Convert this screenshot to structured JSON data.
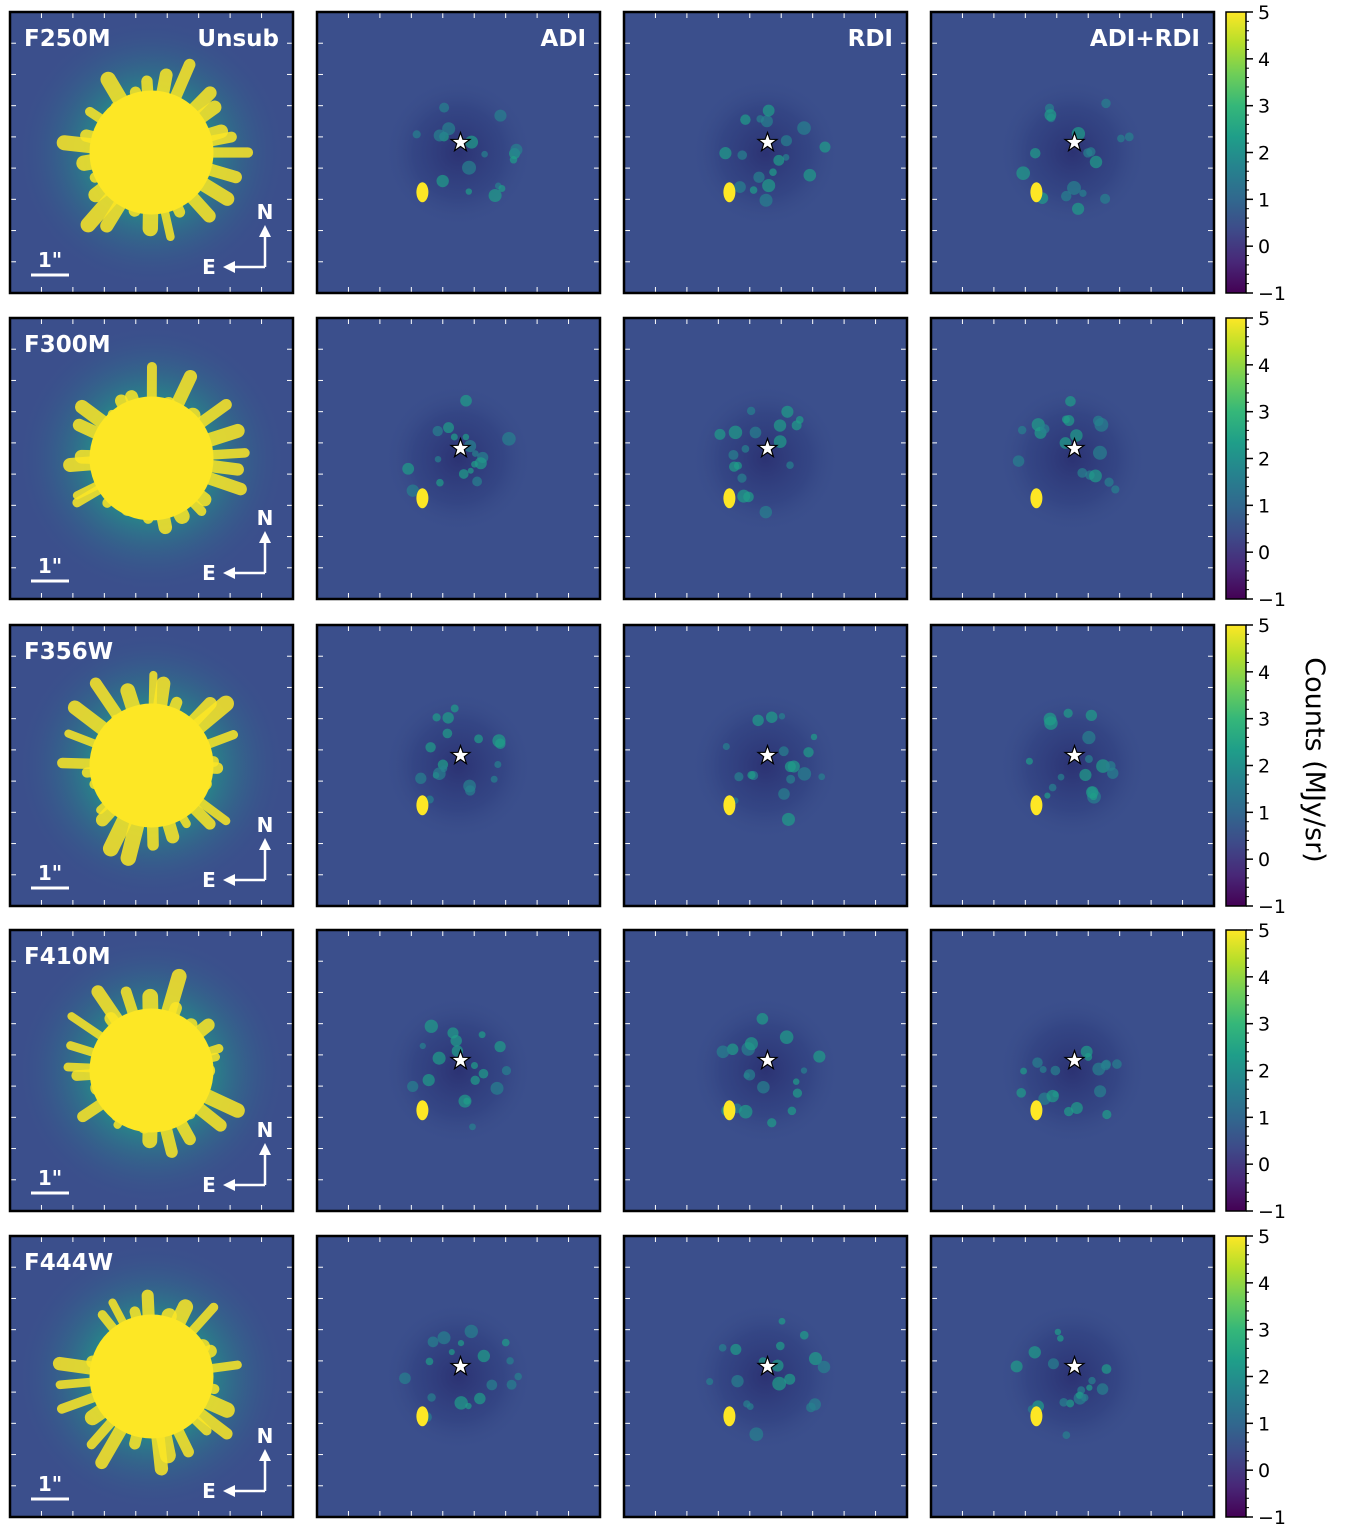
{
  "chart_data": {
    "type": "heatmap",
    "rows": [
      {
        "filter": "F250M"
      },
      {
        "filter": "F300M"
      },
      {
        "filter": "F356W"
      },
      {
        "filter": "F410M"
      },
      {
        "filter": "F444W"
      }
    ],
    "columns": [
      {
        "label": "Unsub"
      },
      {
        "label": "ADI"
      },
      {
        "label": "RDI"
      },
      {
        "label": "ADI+RDI"
      }
    ],
    "companion_offsets_arcsec": {
      "dx": -0.95,
      "dy": -1.9
    },
    "colorbar": {
      "label": "Counts (MJy/sr)",
      "range": [
        -1,
        5
      ],
      "ticks": [
        "5",
        "4",
        "3",
        "2",
        "1",
        "0",
        "−1"
      ],
      "tick_values": [
        5,
        4,
        3,
        2,
        1,
        0,
        -1
      ],
      "colormap": "viridis",
      "colors": [
        "#440154",
        "#482878",
        "#3e4a89",
        "#31688e",
        "#26828e",
        "#1f9e89",
        "#35b779",
        "#6ece58",
        "#b5de2b",
        "#fde725"
      ]
    },
    "annotations": {
      "scale_bar": "1\"",
      "north": "N",
      "east": "E",
      "star_marker": "star-marker-icon"
    },
    "background_color": "#3b4f8c",
    "saturated_color": "#fde725"
  }
}
